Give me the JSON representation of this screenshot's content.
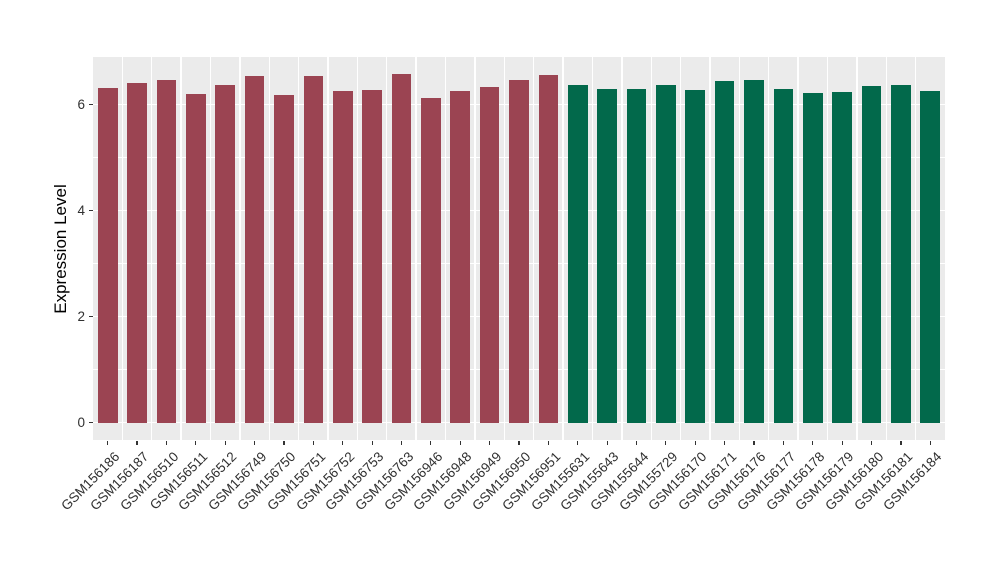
{
  "chart_data": {
    "type": "bar",
    "title": "",
    "xlabel": "",
    "ylabel": "Expression Level",
    "ylim": [
      -0.33,
      6.9
    ],
    "yticks": [
      0,
      2,
      4,
      6
    ],
    "grid": "on",
    "legend_position": "none",
    "panel_background": "#EBEBEB",
    "gridline_color": "#FFFFFF",
    "group_colors": {
      "group1": "#9B4452",
      "group2": "#02694B"
    },
    "categories": [
      "GSM156186",
      "GSM156187",
      "GSM156510",
      "GSM156511",
      "GSM156512",
      "GSM156749",
      "GSM156750",
      "GSM156751",
      "GSM156752",
      "GSM156753",
      "GSM156763",
      "GSM156946",
      "GSM156948",
      "GSM156949",
      "GSM156950",
      "GSM156951",
      "GSM155631",
      "GSM155643",
      "GSM155644",
      "GSM155729",
      "GSM156170",
      "GSM156171",
      "GSM156176",
      "GSM156177",
      "GSM156178",
      "GSM156179",
      "GSM156180",
      "GSM156181",
      "GSM156184"
    ],
    "values": [
      6.32,
      6.4,
      6.47,
      6.21,
      6.37,
      6.55,
      6.19,
      6.55,
      6.26,
      6.28,
      6.57,
      6.13,
      6.25,
      6.33,
      6.47,
      6.56,
      6.38,
      6.3,
      6.3,
      6.37,
      6.28,
      6.44,
      6.47,
      6.3,
      6.22,
      6.23,
      6.35,
      6.38,
      6.26
    ],
    "groups": [
      "group1",
      "group1",
      "group1",
      "group1",
      "group1",
      "group1",
      "group1",
      "group1",
      "group1",
      "group1",
      "group1",
      "group1",
      "group1",
      "group1",
      "group1",
      "group1",
      "group2",
      "group2",
      "group2",
      "group2",
      "group2",
      "group2",
      "group2",
      "group2",
      "group2",
      "group2",
      "group2",
      "group2",
      "group2"
    ]
  }
}
